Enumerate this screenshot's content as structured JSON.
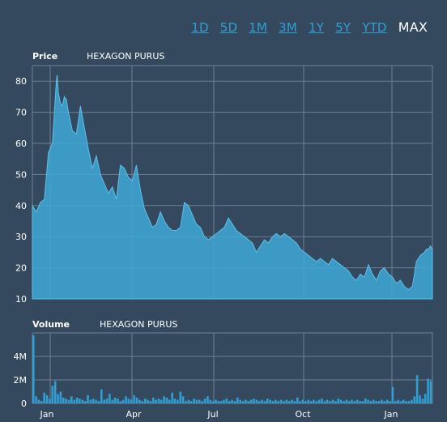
{
  "range_selector": {
    "options": [
      "1D",
      "5D",
      "1M",
      "3M",
      "1Y",
      "5Y",
      "YTD",
      "MAX"
    ],
    "selected": "MAX"
  },
  "colors": {
    "background": "#34495e",
    "accent": "#2f9fd4",
    "fill": "#3fa8d6",
    "grid": "#6f7f90"
  },
  "chart_data": [
    {
      "type": "area",
      "title": "Price",
      "subtitle": "HEXAGON PURUS",
      "ylim": [
        10,
        85
      ],
      "yticks": [
        10,
        20,
        30,
        40,
        50,
        60,
        70,
        80
      ],
      "xtick_labels": [
        "Jan",
        "Apr",
        "Jul",
        "Oct",
        "Jan"
      ],
      "grid": true,
      "series": [
        {
          "x": [
            0,
            0.01,
            0.02,
            0.03,
            0.04,
            0.05,
            0.06,
            0.062,
            0.065,
            0.07,
            0.075,
            0.08,
            0.085,
            0.09,
            0.1,
            0.11,
            0.12,
            0.13,
            0.14,
            0.15,
            0.16,
            0.17,
            0.18,
            0.19,
            0.2,
            0.21,
            0.22,
            0.23,
            0.24,
            0.25,
            0.26,
            0.27,
            0.28,
            0.29,
            0.3,
            0.31,
            0.32,
            0.33,
            0.34,
            0.35,
            0.36,
            0.37,
            0.38,
            0.39,
            0.4,
            0.41,
            0.42,
            0.43,
            0.44,
            0.45,
            0.46,
            0.47,
            0.48,
            0.49,
            0.5,
            0.51,
            0.52,
            0.53,
            0.54,
            0.55,
            0.56,
            0.57,
            0.58,
            0.59,
            0.6,
            0.61,
            0.62,
            0.63,
            0.64,
            0.65,
            0.66,
            0.67,
            0.68,
            0.69,
            0.7,
            0.71,
            0.72,
            0.73,
            0.74,
            0.75,
            0.76,
            0.77,
            0.78,
            0.79,
            0.8,
            0.81,
            0.82,
            0.83,
            0.84,
            0.85,
            0.86,
            0.87,
            0.88,
            0.89,
            0.9,
            0.91,
            0.92,
            0.93,
            0.94,
            0.95,
            0.96,
            0.97,
            0.98,
            0.985,
            0.99,
            0.995,
            1.0
          ],
          "values": [
            40,
            38,
            41,
            42,
            57,
            60,
            80,
            82,
            76,
            73,
            72,
            75,
            74,
            70,
            64,
            63,
            72,
            65,
            58,
            52,
            56,
            50,
            47,
            44,
            46,
            42,
            53,
            52,
            49,
            48,
            53,
            45,
            39,
            36,
            33,
            34,
            38,
            35,
            33,
            32,
            32,
            33,
            41,
            40,
            37,
            34,
            33,
            30,
            29,
            30,
            31,
            32,
            33,
            36,
            34,
            32,
            31,
            30,
            29,
            28,
            25,
            27,
            29,
            28,
            30,
            31,
            30,
            31,
            30,
            29,
            28,
            26,
            25,
            24,
            23,
            22,
            23,
            22,
            21,
            23,
            22,
            21,
            20,
            19,
            17,
            16,
            18,
            17,
            21,
            18,
            16,
            19,
            20,
            18,
            17,
            15,
            16,
            14,
            13,
            14,
            22,
            24,
            25,
            26,
            26,
            27,
            26
          ]
        }
      ]
    },
    {
      "type": "bar",
      "title": "Volume",
      "subtitle": "HEXAGON PURUS",
      "ylim": [
        0,
        6000000
      ],
      "yticks": [
        0,
        2000000,
        4000000
      ],
      "ytick_labels": [
        "0",
        "2M",
        "4M"
      ],
      "xtick_labels": [
        "Jan",
        "Apr",
        "Jul",
        "Oct",
        "Jan"
      ],
      "grid": true,
      "series": [
        {
          "values": [
            5800000,
            600000,
            300000,
            200000,
            900000,
            700000,
            400000,
            1500000,
            1900000,
            800000,
            1000000,
            500000,
            400000,
            300000,
            600000,
            300000,
            500000,
            400000,
            300000,
            200000,
            700000,
            300000,
            400000,
            300000,
            200000,
            1200000,
            300000,
            400000,
            800000,
            300000,
            500000,
            400000,
            200000,
            300000,
            600000,
            400000,
            300000,
            700000,
            500000,
            300000,
            200000,
            400000,
            300000,
            200000,
            500000,
            300000,
            400000,
            300000,
            600000,
            500000,
            300000,
            900000,
            400000,
            300000,
            1000000,
            600000,
            200000,
            300000,
            200000,
            400000,
            300000,
            300000,
            200000,
            400000,
            600000,
            300000,
            200000,
            300000,
            200000,
            200000,
            300000,
            400000,
            200000,
            300000,
            200000,
            500000,
            300000,
            200000,
            300000,
            200000,
            300000,
            400000,
            300000,
            200000,
            300000,
            200000,
            400000,
            300000,
            200000,
            300000,
            200000,
            300000,
            200000,
            300000,
            200000,
            300000,
            200000,
            500000,
            200000,
            300000,
            200000,
            300000,
            200000,
            300000,
            200000,
            300000,
            400000,
            200000,
            300000,
            200000,
            300000,
            200000,
            400000,
            300000,
            200000,
            300000,
            200000,
            300000,
            200000,
            300000,
            200000,
            200000,
            400000,
            300000,
            200000,
            300000,
            200000,
            200000,
            300000,
            200000,
            300000,
            200000,
            1400000,
            200000,
            300000,
            200000,
            300000,
            200000,
            200000,
            300000,
            600000,
            2400000,
            700000,
            400000,
            800000,
            2100000,
            1900000
          ]
        }
      ]
    }
  ]
}
